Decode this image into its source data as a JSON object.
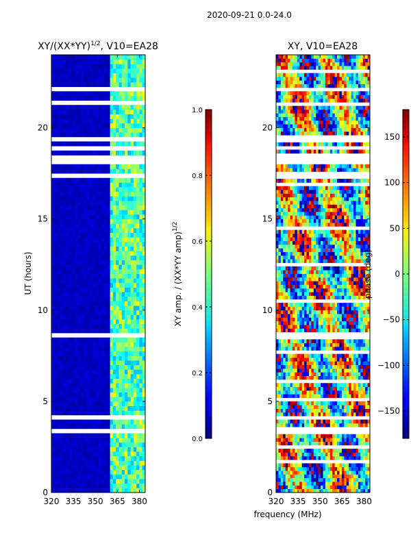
{
  "suptitle": "2020-09-21 0.0-24.0",
  "chart_data": [
    {
      "type": "heatmap",
      "title_main": "XY/(XX*YY)",
      "title_exp": "1/2",
      "title_rest": ", V10=EA28",
      "xlabel": "",
      "ylabel": "UT (hours)",
      "xlim": [
        320,
        384
      ],
      "ylim": [
        0,
        24
      ],
      "xticks": [
        "320",
        "335",
        "350",
        "365",
        "380"
      ],
      "yticks": [
        "0",
        "5",
        "10",
        "15",
        "20"
      ],
      "colorbar": {
        "label_main": "XY amp. / (XX*YY amp)",
        "label_exp": "1/2",
        "range": [
          0.0,
          1.0
        ],
        "ticks": [
          "0.0",
          "0.2",
          "0.4",
          "0.6",
          "0.8",
          "1.0"
        ],
        "colormap": "jet"
      }
    },
    {
      "type": "heatmap",
      "title": "XY, V10=EA28",
      "xlabel": "frequency (MHz)",
      "ylabel": "",
      "xlim": [
        320,
        384
      ],
      "ylim": [
        0,
        24
      ],
      "xticks": [
        "320",
        "335",
        "350",
        "365",
        "380"
      ],
      "yticks": [
        "0",
        "5",
        "10",
        "15",
        "20"
      ],
      "colorbar": {
        "label": "phase (deg)",
        "range": [
          -180,
          180
        ],
        "ticks": [
          "−150",
          "−100",
          "−50",
          "0",
          "50",
          "100",
          "150"
        ],
        "colormap": "jet"
      }
    }
  ]
}
